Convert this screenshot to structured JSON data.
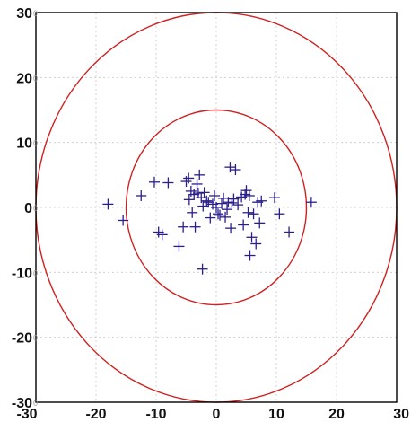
{
  "chart_data": {
    "type": "scatter",
    "title": "",
    "xlabel": "",
    "ylabel": "",
    "xlim": [
      -30,
      30
    ],
    "ylim": [
      -30,
      30
    ],
    "grid": true,
    "x_ticks": [
      -30,
      -20,
      -10,
      0,
      10,
      20,
      30
    ],
    "y_ticks": [
      -30,
      -20,
      -10,
      0,
      10,
      20,
      30
    ],
    "x_tick_labels": [
      "-30",
      "-20",
      "-10",
      "0",
      "10",
      "20",
      "30"
    ],
    "y_tick_labels": [
      "-30",
      "-20",
      "-10",
      "0",
      "10",
      "20",
      "30"
    ],
    "circles": [
      {
        "center": [
          0,
          0
        ],
        "radius": 30,
        "color": "#d02020"
      },
      {
        "center": [
          0,
          0
        ],
        "radius": 15,
        "color": "#d02020"
      }
    ],
    "marker": "+",
    "marker_color": "#2a1f8a",
    "series": [
      {
        "points": [
          [
            -18,
            0.5
          ],
          [
            -15.5,
            -2
          ],
          [
            -12.5,
            1.8
          ],
          [
            -10.3,
            3.9
          ],
          [
            -9.6,
            -3.8
          ],
          [
            -9,
            -4.2
          ],
          [
            -8,
            3.8
          ],
          [
            -6.2,
            -6
          ],
          [
            -5.5,
            -3
          ],
          [
            -5,
            4
          ],
          [
            -4.6,
            4.5
          ],
          [
            -4.5,
            1.2
          ],
          [
            -4.2,
            2.5
          ],
          [
            -4,
            -0.8
          ],
          [
            -3.7,
            2
          ],
          [
            -3.5,
            -3
          ],
          [
            -3.2,
            3.6
          ],
          [
            -3,
            2.2
          ],
          [
            -2.8,
            5
          ],
          [
            -2.5,
            1.5
          ],
          [
            -2.2,
            0.2
          ],
          [
            -2,
            2.3
          ],
          [
            -1.6,
            1
          ],
          [
            -1.3,
            0.8
          ],
          [
            -1,
            -1.6
          ],
          [
            -0.6,
            0.5
          ],
          [
            -0.3,
            1.8
          ],
          [
            0,
            0
          ],
          [
            0.3,
            -1
          ],
          [
            0.6,
            -1.2
          ],
          [
            0.9,
            0.6
          ],
          [
            1.2,
            1.4
          ],
          [
            1.5,
            -1.5
          ],
          [
            1.8,
            -0.3
          ],
          [
            2,
            0.8
          ],
          [
            2.3,
            6.2
          ],
          [
            2.4,
            -3.2
          ],
          [
            2.6,
            0.7
          ],
          [
            2.9,
            1.3
          ],
          [
            3.2,
            5.8
          ],
          [
            3.6,
            0.4
          ],
          [
            4.2,
            1.6
          ],
          [
            4.5,
            -2.7
          ],
          [
            4.8,
            2
          ],
          [
            5,
            2.6
          ],
          [
            5.3,
            -0.8
          ],
          [
            5.5,
            1.8
          ],
          [
            5.6,
            -7.4
          ],
          [
            5.9,
            -4.6
          ],
          [
            6.2,
            -1
          ],
          [
            6.6,
            -5.6
          ],
          [
            6.9,
            0.8
          ],
          [
            7.2,
            -2.4
          ],
          [
            7.5,
            1
          ],
          [
            9.7,
            1.5
          ],
          [
            10.5,
            -1
          ],
          [
            12.1,
            -3.8
          ],
          [
            15.8,
            0.8
          ],
          [
            -2.3,
            -9.5
          ]
        ]
      }
    ]
  }
}
